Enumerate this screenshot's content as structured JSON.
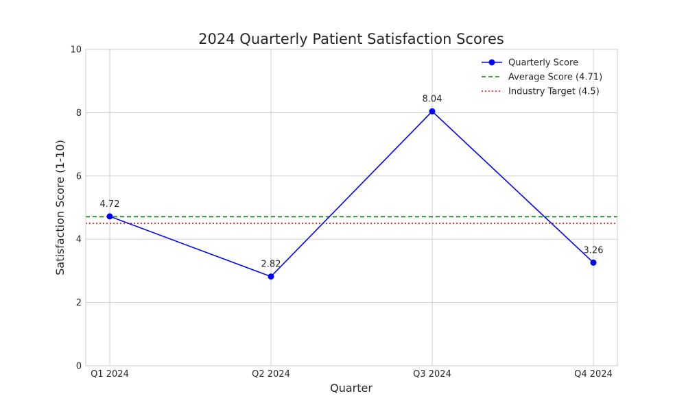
{
  "chart_data": {
    "type": "line",
    "title": "2024 Quarterly Patient Satisfaction Scores",
    "xlabel": "Quarter",
    "ylabel": "Satisfaction Score (1-10)",
    "categories": [
      "Q1 2024",
      "Q2 2024",
      "Q3 2024",
      "Q4 2024"
    ],
    "ylim": [
      0,
      10
    ],
    "yticks": [
      0,
      2,
      4,
      6,
      8,
      10
    ],
    "grid": true,
    "legend_position": "top-right",
    "series": [
      {
        "name": "Quarterly Score",
        "values": [
          4.72,
          2.82,
          8.04,
          3.26
        ],
        "data_labels": [
          "4.72",
          "2.82",
          "8.04",
          "3.26"
        ],
        "color": "#0000ff",
        "marker": "circle",
        "line_style": "solid"
      }
    ],
    "reference_lines": [
      {
        "name": "Average Score (4.71)",
        "value": 4.71,
        "color": "#008000",
        "line_style": "dashed"
      },
      {
        "name": "Industry Target (4.5)",
        "value": 4.5,
        "color": "#ff0000",
        "line_style": "dotted"
      }
    ]
  }
}
